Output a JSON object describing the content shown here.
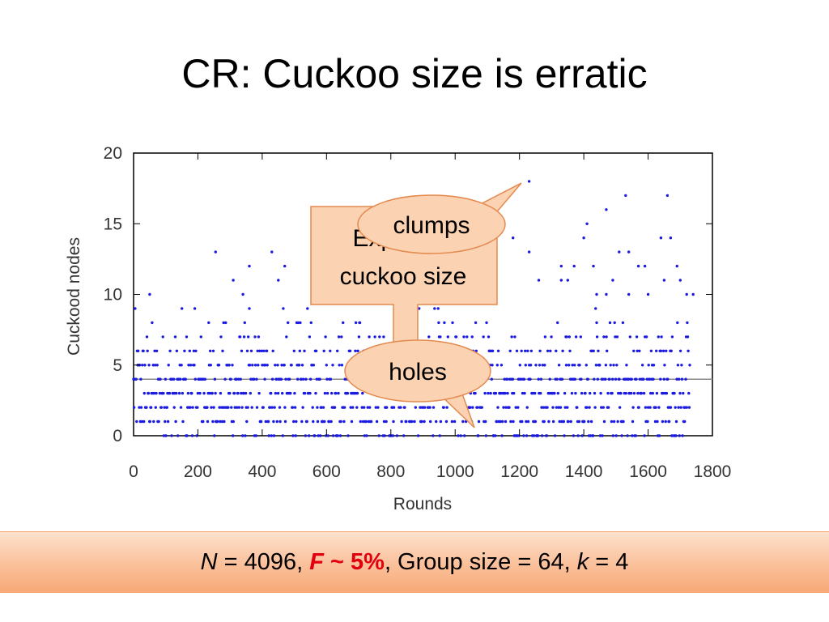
{
  "slide": {
    "title": "CR: Cuckoo size is erratic"
  },
  "callouts": {
    "box_line1": "Expected",
    "box_line2": "cuckoo size",
    "clumps": "clumps",
    "holes": "holes"
  },
  "footer": {
    "n_var": "N",
    "n_text": " = 4096, ",
    "f_var": "F",
    "f_text": " ~ 5%",
    "group_text": ", Group size = 64, ",
    "k_var": "k",
    "k_text": " = 4"
  },
  "colors": {
    "points": "#1a1ae0",
    "mean_line": "#8a8a8a",
    "callout_fill": "#fbd2b2",
    "callout_stroke": "#e48a4f"
  },
  "chart_data": {
    "type": "scatter",
    "xlabel": "Rounds",
    "ylabel": "Cuckood nodes",
    "xlim": [
      0,
      1800
    ],
    "ylim": [
      0,
      20
    ],
    "xticks": [
      "0",
      "200",
      "400",
      "600",
      "800",
      "1000",
      "1200",
      "1400",
      "1600",
      "1800"
    ],
    "yticks": [
      "0",
      "5",
      "10",
      "15",
      "20"
    ],
    "expected_value": 4,
    "x_max_observed": 1730,
    "outliers": [
      {
        "x": 1230,
        "y": 18
      },
      {
        "x": 1530,
        "y": 17
      },
      {
        "x": 1660,
        "y": 17
      },
      {
        "x": 1470,
        "y": 16
      },
      {
        "x": 1410,
        "y": 15
      },
      {
        "x": 1640,
        "y": 14
      },
      {
        "x": 1400,
        "y": 14
      },
      {
        "x": 1180,
        "y": 14
      },
      {
        "x": 1670,
        "y": 14
      },
      {
        "x": 255,
        "y": 13
      },
      {
        "x": 430,
        "y": 13
      },
      {
        "x": 1230,
        "y": 13
      },
      {
        "x": 1510,
        "y": 13
      },
      {
        "x": 1540,
        "y": 13
      },
      {
        "x": 360,
        "y": 12
      },
      {
        "x": 470,
        "y": 12
      },
      {
        "x": 1330,
        "y": 12
      },
      {
        "x": 1590,
        "y": 12
      },
      {
        "x": 1370,
        "y": 12
      },
      {
        "x": 1430,
        "y": 12
      },
      {
        "x": 1570,
        "y": 12
      },
      {
        "x": 1690,
        "y": 12
      },
      {
        "x": 310,
        "y": 11
      },
      {
        "x": 450,
        "y": 11
      },
      {
        "x": 1260,
        "y": 11
      },
      {
        "x": 1330,
        "y": 11
      },
      {
        "x": 1350,
        "y": 11
      },
      {
        "x": 1490,
        "y": 11
      },
      {
        "x": 1650,
        "y": 11
      },
      {
        "x": 1700,
        "y": 11
      },
      {
        "x": 50,
        "y": 10
      },
      {
        "x": 340,
        "y": 10
      },
      {
        "x": 1120,
        "y": 10
      },
      {
        "x": 1440,
        "y": 10
      },
      {
        "x": 1470,
        "y": 10
      },
      {
        "x": 1540,
        "y": 10
      },
      {
        "x": 1600,
        "y": 10
      },
      {
        "x": 1720,
        "y": 10
      },
      {
        "x": 1740,
        "y": 10
      }
    ],
    "series_note": "approximately 1730 rounds with values 0-9 concentrated in 1-6"
  }
}
